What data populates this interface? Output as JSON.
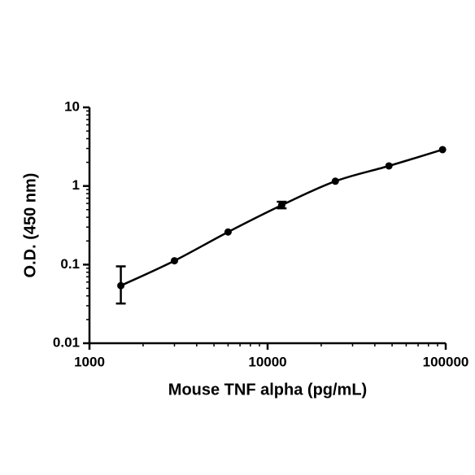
{
  "chart_data": {
    "type": "scatter",
    "x_label": "Mouse TNF alpha (pg/mL)",
    "y_label": "O.D. (450 nm)",
    "x": [
      1500,
      3000,
      6000,
      12000,
      24000,
      48000,
      96000
    ],
    "values": [
      0.054,
      0.112,
      0.26,
      0.57,
      1.15,
      1.8,
      2.9
    ],
    "error_lower": [
      0.032,
      null,
      null,
      0.52,
      null,
      null,
      null
    ],
    "error_upper": [
      0.095,
      null,
      null,
      0.63,
      null,
      null,
      null
    ],
    "color": "#000000",
    "x_log": true,
    "y_log": true,
    "fit_curve": true,
    "xlim": [
      1000,
      100000
    ],
    "xticks": [
      1000,
      10000,
      100000
    ],
    "ylim": [
      0.01,
      10
    ],
    "yticks": [
      0.01,
      0.1,
      1,
      10
    ]
  }
}
